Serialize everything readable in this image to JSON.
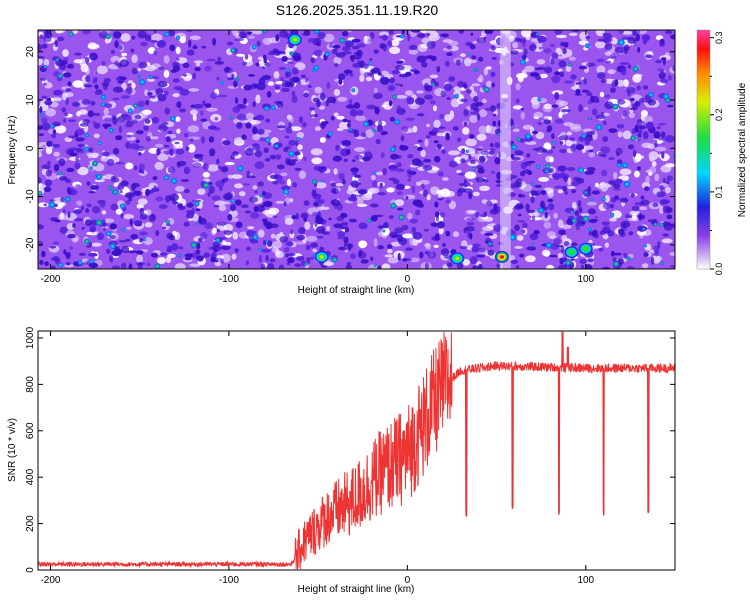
{
  "title": "S126.2025.351.11.19.R20",
  "colors": {
    "line": "#ee3333",
    "spectrogram_base": "#9a55ee",
    "spectrogram_dark": "#3a10c8",
    "background": "#ffffff"
  },
  "chart_data": [
    {
      "type": "heatmap",
      "xlabel": "Height of straight line (km)",
      "ylabel": "Frequency (Hz)",
      "xlim": [
        -207,
        150
      ],
      "ylim": [
        -25,
        24.5
      ],
      "xticks": [
        -200,
        -100,
        0,
        100
      ],
      "yticks": [
        20,
        10,
        0,
        -10,
        -20
      ],
      "xtick_labels": [
        "-200",
        "-100",
        "0",
        "100"
      ],
      "ytick_labels": [
        "20",
        "10",
        "0",
        "-10",
        "-20"
      ],
      "stripe_x": [
        52,
        58
      ],
      "hotspots": [
        {
          "x": 53,
          "y": -22.5,
          "value": 0.3
        },
        {
          "x": 28,
          "y": -22.8,
          "value": 0.16
        },
        {
          "x": -48,
          "y": -22.5,
          "value": 0.14
        },
        {
          "x": 92,
          "y": -21.5,
          "value": 0.11
        },
        {
          "x": -63,
          "y": 22.5,
          "value": 0.16
        },
        {
          "x": 100,
          "y": -20.8,
          "value": 0.13
        }
      ],
      "colorbar": {
        "label": "Normalized spectral amplitude",
        "range": [
          0.0,
          0.31
        ],
        "ticks": [
          0.0,
          0.1,
          0.2,
          0.3
        ],
        "tick_labels": [
          "0.0",
          "0.1",
          "0.2",
          "0.3"
        ]
      }
    },
    {
      "type": "line",
      "xlabel": "Height of straight line (km)",
      "ylabel": "SNR (10 * v/v)",
      "xlim": [
        -207,
        150
      ],
      "ylim": [
        0,
        1030
      ],
      "xticks": [
        -200,
        -100,
        0,
        100
      ],
      "yticks": [
        0,
        200,
        400,
        600,
        800,
        1000
      ],
      "xtick_labels": [
        "-200",
        "-100",
        "0",
        "100"
      ],
      "ytick_labels": [
        "0",
        "200",
        "400",
        "600",
        "800",
        "1000"
      ],
      "baseline": {
        "x_range": [
          -207,
          -63
        ],
        "snr": 25
      },
      "envelope": [
        {
          "x": -65,
          "snr": 25
        },
        {
          "x": -58,
          "snr": 120
        },
        {
          "x": -45,
          "snr": 230
        },
        {
          "x": -30,
          "snr": 300
        },
        {
          "x": -15,
          "snr": 420
        },
        {
          "x": 0,
          "snr": 500
        },
        {
          "x": 10,
          "snr": 640
        },
        {
          "x": 20,
          "snr": 790
        },
        {
          "x": 30,
          "snr": 860
        },
        {
          "x": 50,
          "snr": 880
        },
        {
          "x": 100,
          "snr": 870
        },
        {
          "x": 150,
          "snr": 870
        }
      ],
      "dips": [
        {
          "x": 33,
          "snr": 230
        },
        {
          "x": 59,
          "snr": 265
        },
        {
          "x": 85,
          "snr": 240
        },
        {
          "x": 110,
          "snr": 235
        },
        {
          "x": 135,
          "snr": 245
        }
      ],
      "peaks": [
        {
          "x": 87,
          "snr": 1030
        },
        {
          "x": 90,
          "snr": 960
        }
      ]
    }
  ]
}
